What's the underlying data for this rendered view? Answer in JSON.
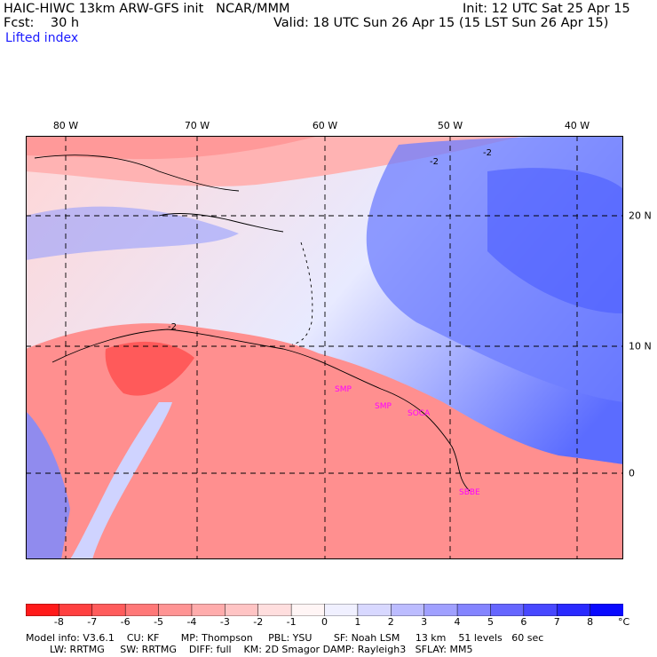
{
  "header": {
    "title": "HAIC-HIWC 13km ARW-GFS init   NCAR/MMM",
    "fcst": "Fcst:    30 h",
    "init": "Init: 12 UTC Sat 25 Apr 15",
    "valid": "Valid: 18 UTC Sun 26 Apr 15 (15 LST Sun 26 Apr 15)",
    "field": "Lifted index"
  },
  "axes": {
    "lon_labels": [
      "80 W",
      "70 W",
      "60 W",
      "50 W",
      "40 W"
    ],
    "lat_labels": [
      "20 N",
      "10 N",
      "0"
    ]
  },
  "stations": [
    "SMP",
    "SMP",
    "SOCA",
    "SBBE"
  ],
  "contour_labels": [
    "-2",
    "-2",
    "-2"
  ],
  "colorbar": {
    "ticks": [
      "-8",
      "-7",
      "-6",
      "-5",
      "-4",
      "-3",
      "-2",
      "-1",
      "0",
      "1",
      "2",
      "3",
      "4",
      "5",
      "6",
      "7",
      "8"
    ],
    "unit": "°C",
    "colors": [
      "#ff1a1a",
      "#ff4040",
      "#ff5c5c",
      "#ff7878",
      "#ff9494",
      "#ffacac",
      "#ffc4c4",
      "#ffdede",
      "#fff5f5",
      "#f0f0ff",
      "#d8d8ff",
      "#bcbcff",
      "#a0a0ff",
      "#8484ff",
      "#6666ff",
      "#4848ff",
      "#2a2aff",
      "#0a0aff"
    ]
  },
  "footer": {
    "line1": "Model info: V3.6.1    CU: KF       MP: Thompson     PBL: YSU       SF: Noah LSM     13 km    51 levels   60 sec",
    "line2": "LW: RRTMG     SW: RRTMG    DIFF: full    KM: 2D Smagor DAMP: Rayleigh3   SFLAY: MM5"
  }
}
